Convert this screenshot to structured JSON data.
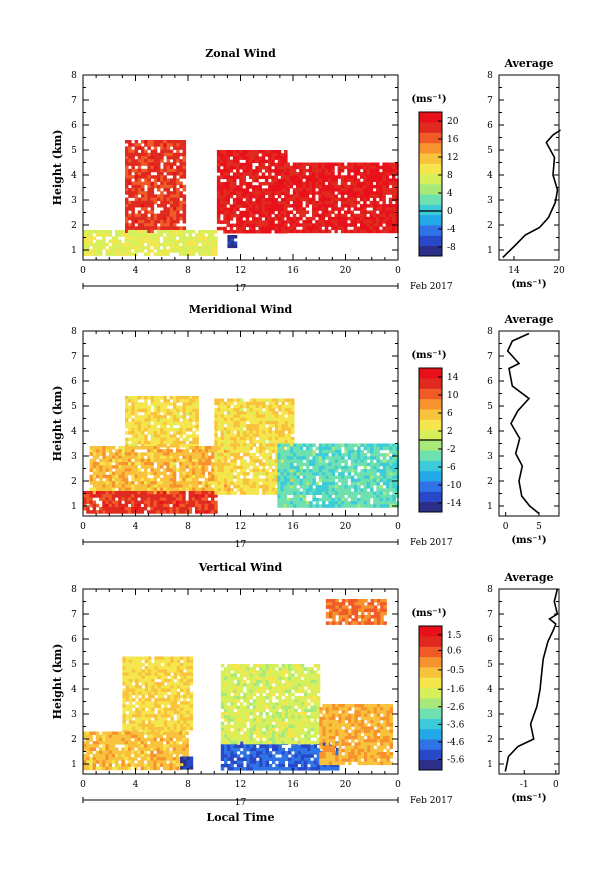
{
  "chart_data": [
    {
      "type": "heatmap",
      "title": "Zonal Wind",
      "ylabel": "Height (km)",
      "xlabel": "",
      "x_ticks": [
        "0",
        "4",
        "8",
        "12",
        "16",
        "20",
        "0"
      ],
      "y_ticks": [
        "1",
        "2",
        "3",
        "4",
        "5",
        "6",
        "7",
        "8"
      ],
      "xlim": [
        0,
        24
      ],
      "ylim": [
        0.6,
        8
      ],
      "date_row": {
        "day": "17",
        "month_year": "Feb 2017"
      },
      "colorbar": {
        "unit": "(ms⁻¹)",
        "ticks": [
          "20",
          "16",
          "12",
          "8",
          "4",
          "0",
          "-4",
          "-8"
        ],
        "range": [
          -10,
          22
        ],
        "zero_line": 0
      },
      "regions": [
        {
          "value": 18,
          "t0": 3.2,
          "t1": 7.6,
          "h0": 1.7,
          "h1": 5.4
        },
        {
          "value": 20,
          "t0": 10.2,
          "t1": 15.5,
          "h0": 1.8,
          "h1": 5.0
        },
        {
          "value": 20,
          "t0": 15.5,
          "t1": 24,
          "h0": 1.8,
          "h1": 4.5
        },
        {
          "value": 8,
          "t0": 0,
          "t1": 10,
          "h0": 0.8,
          "h1": 1.8
        },
        {
          "value": -8,
          "t0": 11.0,
          "t1": 11.6,
          "h0": 1.2,
          "h1": 1.6
        }
      ],
      "average_profile": {
        "title": "Average",
        "unit": "(ms⁻¹)",
        "x_ticks": [
          "14",
          "20"
        ],
        "xlim": [
          12,
          20
        ],
        "points": [
          [
            12.5,
            0.7
          ],
          [
            14.2,
            1.2
          ],
          [
            15.5,
            1.6
          ],
          [
            17.4,
            1.9
          ],
          [
            18.6,
            2.3
          ],
          [
            19.5,
            2.9
          ],
          [
            19.8,
            3.4
          ],
          [
            19.2,
            4.0
          ],
          [
            19.4,
            4.7
          ],
          [
            18.3,
            5.3
          ],
          [
            19.2,
            5.6
          ],
          [
            20.2,
            5.8
          ]
        ]
      }
    },
    {
      "type": "heatmap",
      "title": "Meridional Wind",
      "ylabel": "Height (km)",
      "xlabel": "",
      "x_ticks": [
        "0",
        "4",
        "8",
        "12",
        "16",
        "20",
        "0"
      ],
      "y_ticks": [
        "1",
        "2",
        "3",
        "4",
        "5",
        "6",
        "7",
        "8"
      ],
      "xlim": [
        0,
        24
      ],
      "ylim": [
        0.6,
        8
      ],
      "date_row": {
        "day": "17",
        "month_year": "Feb 2017"
      },
      "colorbar": {
        "unit": "(ms⁻¹)",
        "ticks": [
          "14",
          "10",
          "6",
          "2",
          "-2",
          "-6",
          "-10",
          "-14"
        ],
        "range": [
          -16,
          16
        ],
        "zero_line": 0
      },
      "regions": [
        {
          "value": 4,
          "t0": 3.2,
          "t1": 8.6,
          "h0": 3.4,
          "h1": 5.4
        },
        {
          "value": 6,
          "t0": 0.5,
          "t1": 11,
          "h0": 1.6,
          "h1": 3.4
        },
        {
          "value": 12,
          "t0": 0,
          "t1": 10,
          "h0": 0.8,
          "h1": 1.6
        },
        {
          "value": 4,
          "t0": 10,
          "t1": 16,
          "h0": 1.5,
          "h1": 5.3
        },
        {
          "value": -4,
          "t0": 14.8,
          "t1": 24,
          "h0": 1.0,
          "h1": 3.5
        }
      ],
      "average_profile": {
        "title": "Average",
        "unit": "(ms⁻¹)",
        "x_ticks": [
          "0",
          "5"
        ],
        "xlim": [
          -1,
          8
        ],
        "points": [
          [
            5,
            0.7
          ],
          [
            3.6,
            1.0
          ],
          [
            2.4,
            1.4
          ],
          [
            2.0,
            2.0
          ],
          [
            2.5,
            2.6
          ],
          [
            1.5,
            3.1
          ],
          [
            2.1,
            3.7
          ],
          [
            0.8,
            4.3
          ],
          [
            1.8,
            4.8
          ],
          [
            3.5,
            5.3
          ],
          [
            1.0,
            5.8
          ],
          [
            0.5,
            6.5
          ],
          [
            2.0,
            6.7
          ],
          [
            0.3,
            7.2
          ],
          [
            1.0,
            7.6
          ],
          [
            3.5,
            7.9
          ]
        ]
      }
    },
    {
      "type": "heatmap",
      "title": "Vertical Wind",
      "ylabel": "Height (km)",
      "xlabel": "Local Time",
      "x_ticks": [
        "0",
        "4",
        "8",
        "12",
        "16",
        "20",
        "0"
      ],
      "y_ticks": [
        "1",
        "2",
        "3",
        "4",
        "5",
        "6",
        "7",
        "8"
      ],
      "xlim": [
        0,
        24
      ],
      "ylim": [
        0.6,
        8
      ],
      "date_row": {
        "day": "17",
        "month_year": "Feb 2017"
      },
      "colorbar": {
        "unit": "(ms⁻¹)",
        "ticks": [
          "1.5",
          "0.6",
          "-0.5",
          "-1.6",
          "-2.6",
          "-3.6",
          "-4.6",
          "-5.6"
        ],
        "range": [
          -6.2,
          2.0
        ],
        "zero_line": null
      },
      "regions": [
        {
          "value": -1.0,
          "t0": 3.0,
          "t1": 8.2,
          "h0": 2.3,
          "h1": 5.3
        },
        {
          "value": -0.6,
          "t0": 0,
          "t1": 8,
          "h0": 0.8,
          "h1": 2.3
        },
        {
          "value": -5.6,
          "t0": 7.4,
          "t1": 8.2,
          "h0": 0.8,
          "h1": 1.3
        },
        {
          "value": -5.0,
          "t0": 10.5,
          "t1": 19.5,
          "h0": 0.8,
          "h1": 1.9
        },
        {
          "value": -1.8,
          "t0": 10.5,
          "t1": 18,
          "h0": 1.9,
          "h1": 5.0
        },
        {
          "value": -0.4,
          "t0": 18,
          "t1": 23.5,
          "h0": 1.0,
          "h1": 3.4
        },
        {
          "value": 0.3,
          "t0": 18.5,
          "t1": 23,
          "h0": 6.6,
          "h1": 7.6
        }
      ],
      "average_profile": {
        "title": "Average",
        "unit": "(ms⁻¹)",
        "x_ticks": [
          "-1",
          "0"
        ],
        "xlim": [
          -1.8,
          0.1
        ],
        "points": [
          [
            -1.6,
            0.7
          ],
          [
            -1.5,
            1.3
          ],
          [
            -1.2,
            1.7
          ],
          [
            -0.7,
            2.0
          ],
          [
            -0.8,
            2.6
          ],
          [
            -0.6,
            3.3
          ],
          [
            -0.5,
            4.0
          ],
          [
            -0.45,
            4.6
          ],
          [
            -0.4,
            5.2
          ],
          [
            -0.25,
            5.9
          ],
          [
            -0.1,
            6.3
          ],
          [
            0.0,
            6.6
          ],
          [
            -0.2,
            6.8
          ],
          [
            0.05,
            7.0
          ],
          [
            -0.05,
            7.5
          ],
          [
            0.05,
            8.0
          ]
        ]
      }
    }
  ]
}
